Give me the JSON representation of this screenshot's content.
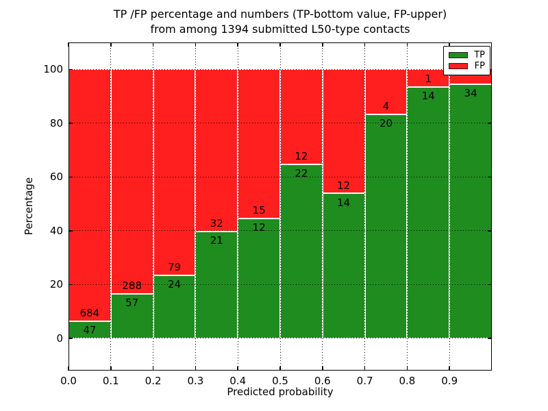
{
  "figure": {
    "title_line1": "TP /FP percentage and numbers (TP-bottom value, FP-upper)",
    "title_line2": "from among 1394 submitted L50-type contacts"
  },
  "chart_data": {
    "type": "bar",
    "stacked": true,
    "normalized": "each bar scaled to 100%",
    "title": "TP /FP percentage and numbers (TP-bottom value, FP-upper) from among 1394 submitted L50-type contacts",
    "xlabel": "Predicted probability",
    "ylabel": "Percentage",
    "xlim": [
      0.0,
      1.0
    ],
    "ylim": [
      -12,
      110
    ],
    "x_tick_labels": [
      "0.0",
      "0.1",
      "0.2",
      "0.3",
      "0.4",
      "0.5",
      "0.6",
      "0.7",
      "0.8",
      "0.9"
    ],
    "y_ticks": [
      0,
      20,
      40,
      60,
      80,
      100
    ],
    "grid": "dotted black, horizontal and vertical, drawn over bars",
    "categories": [
      "0.0-0.1",
      "0.1-0.2",
      "0.2-0.3",
      "0.3-0.4",
      "0.4-0.5",
      "0.5-0.6",
      "0.6-0.7",
      "0.7-0.8",
      "0.8-0.9",
      "0.9-1.0"
    ],
    "series": [
      {
        "name": "TP",
        "color": "#1f8c1f",
        "values": [
          47,
          57,
          24,
          21,
          12,
          22,
          14,
          20,
          14,
          34
        ]
      },
      {
        "name": "FP",
        "color": "#ff1f1f",
        "values": [
          684,
          288,
          79,
          32,
          15,
          12,
          12,
          4,
          1,
          2
        ]
      }
    ],
    "tp_value_labels": [
      "47",
      "57",
      "24",
      "21",
      "12",
      "22",
      "14",
      "20",
      "14",
      "34"
    ],
    "fp_value_labels": [
      "684",
      "288",
      "79",
      "32",
      "15",
      "12",
      "12",
      "4",
      "1",
      ""
    ],
    "total_contacts": 1394,
    "legend": {
      "position": "upper right",
      "entries": [
        {
          "label": "TP",
          "color": "#1f8c1f"
        },
        {
          "label": "FP",
          "color": "#ff1f1f"
        }
      ]
    },
    "colors": {
      "bar_edge": "#ffffff",
      "grid": "#000000",
      "text": "#000000",
      "background": "#ffffff"
    }
  }
}
